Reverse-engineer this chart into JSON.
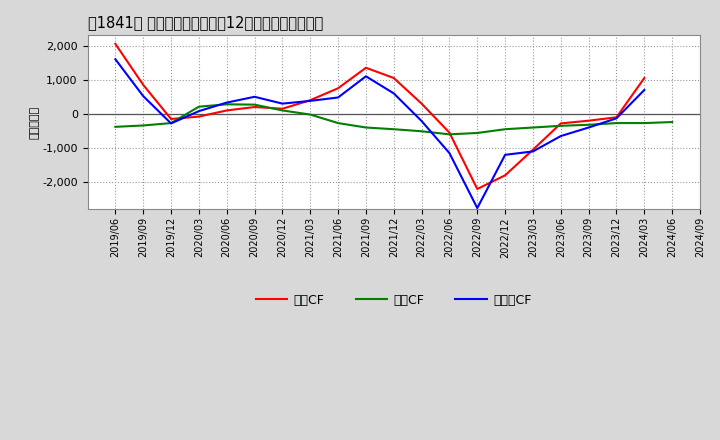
{
  "title": "　1841、 キャッシュフローの12か月移動合計の推移",
  "ylabel": "（百万円）",
  "background_color": "#d8d8d8",
  "plot_bg_color": "#ffffff",
  "dates": [
    "2019/06",
    "2019/09",
    "2019/12",
    "2020/03",
    "2020/06",
    "2020/09",
    "2020/12",
    "2021/03",
    "2021/06",
    "2021/09",
    "2021/12",
    "2022/03",
    "2022/06",
    "2022/09",
    "2022/12",
    "2023/03",
    "2023/06",
    "2023/09",
    "2023/12",
    "2024/03",
    "2024/06",
    "2024/09"
  ],
  "operating_cf": [
    2050,
    850,
    -150,
    -80,
    100,
    200,
    150,
    400,
    750,
    1350,
    1050,
    300,
    -550,
    -2200,
    -1800,
    -1050,
    -280,
    -200,
    -100,
    1050,
    null,
    null
  ],
  "investing_cf": [
    -380,
    -340,
    -270,
    210,
    280,
    270,
    100,
    -20,
    -270,
    -400,
    -450,
    -510,
    -600,
    -560,
    -450,
    -400,
    -350,
    -320,
    -270,
    -270,
    -240,
    null
  ],
  "free_cf": [
    1600,
    520,
    -280,
    80,
    330,
    500,
    300,
    380,
    480,
    1100,
    600,
    -210,
    -1150,
    -2760,
    -1200,
    -1100,
    -650,
    -400,
    -130,
    700,
    null,
    null
  ],
  "ylim": [
    -2800,
    2300
  ],
  "yticks": [
    -2000,
    -1000,
    0,
    1000,
    2000
  ],
  "colors": {
    "operating": "#ff0000",
    "investing": "#008000",
    "free": "#0000ff"
  },
  "legend_labels": [
    "営業CF",
    "投資CF",
    "フリーCF"
  ]
}
